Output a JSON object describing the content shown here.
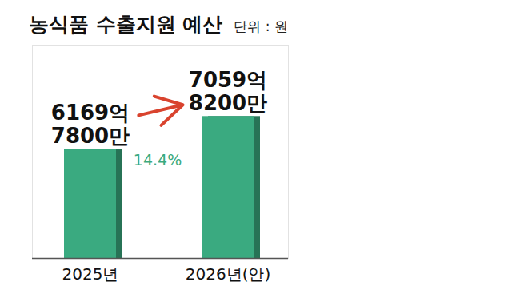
{
  "chart_data": {
    "type": "bar",
    "title": "농식품 수출지원 예산",
    "subtitle": "단위 : 원",
    "categories": [
      "2025년",
      "2026년(안)"
    ],
    "values": [
      616978000000,
      705982000000
    ],
    "value_labels": [
      "6169억\n7800만",
      "7059억\n8200만"
    ],
    "color": "#3aaa80",
    "ylim": [
      320000000000,
      900000000000
    ],
    "data_labels": true,
    "tick_labels": "x",
    "annotation": "14.4%"
  }
}
